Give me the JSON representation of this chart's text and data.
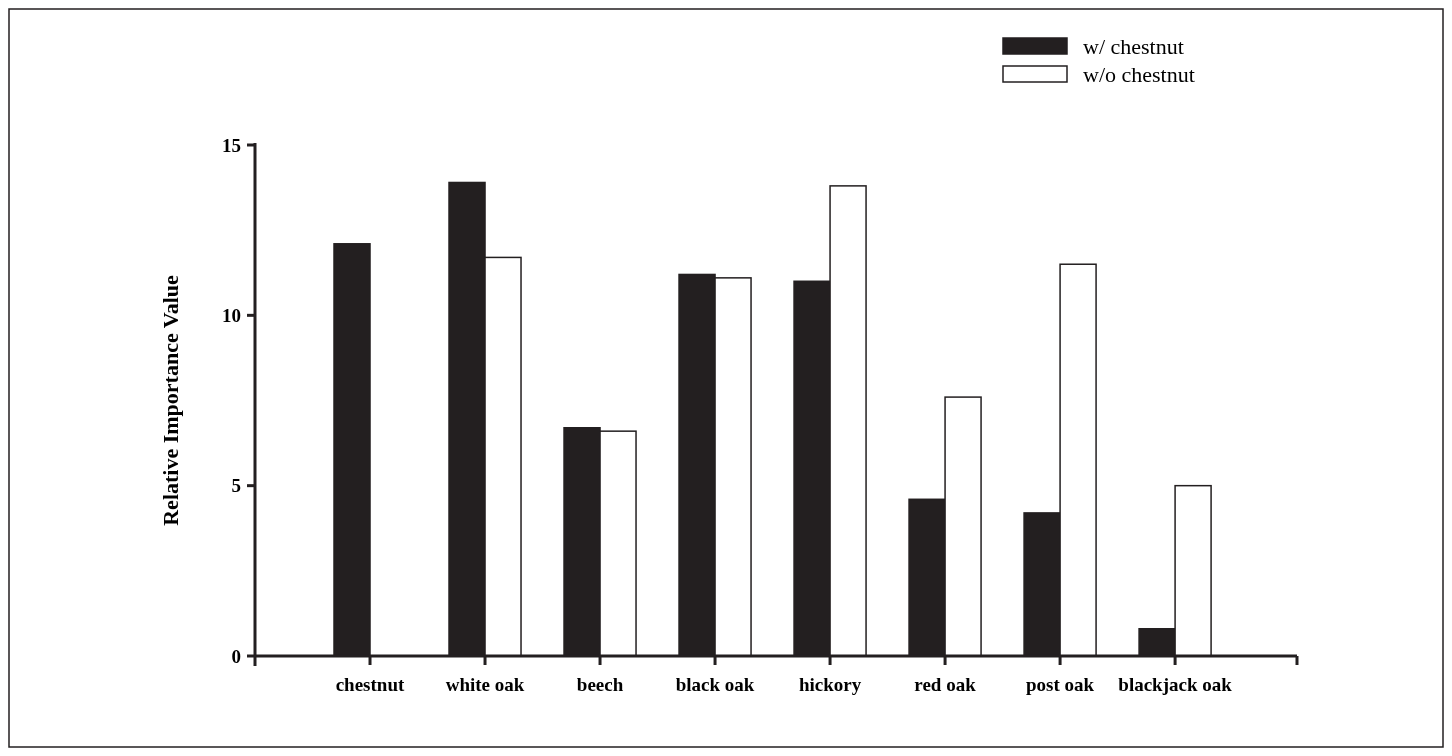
{
  "chart_data": {
    "type": "bar",
    "ylabel": "Relative Importance Value",
    "categories": [
      "chestnut",
      "white oak",
      "beech",
      "black oak",
      "hickory",
      "red oak",
      "post oak",
      "blackjack oak"
    ],
    "series": [
      {
        "name": "w/ chestnut",
        "color": "#231f20",
        "values": [
          12.1,
          13.9,
          6.7,
          11.2,
          11.0,
          4.6,
          4.2,
          0.8
        ]
      },
      {
        "name": "w/o chestnut",
        "color": "#ffffff",
        "values": [
          0,
          11.7,
          6.6,
          11.1,
          13.8,
          7.6,
          11.5,
          5.0
        ]
      }
    ],
    "ylim": [
      0,
      15
    ],
    "yticks": [
      0,
      5,
      10,
      15
    ],
    "grid": false,
    "legend": "top right"
  }
}
